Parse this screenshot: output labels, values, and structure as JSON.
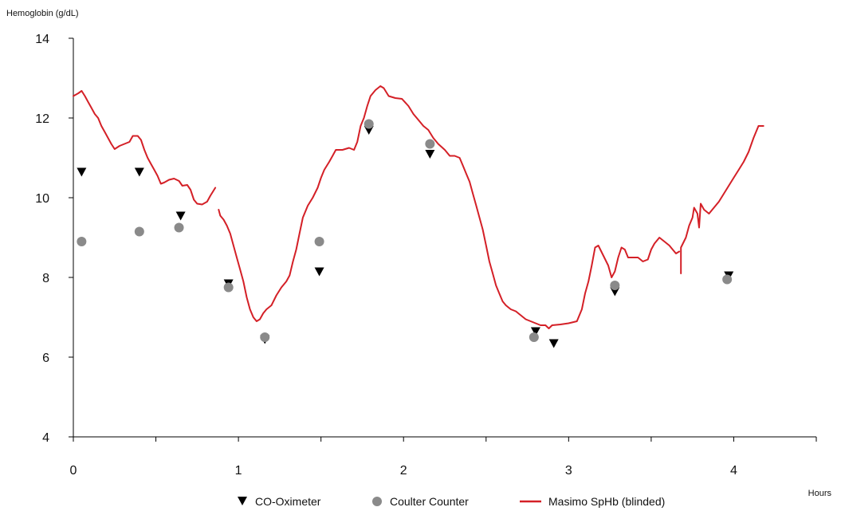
{
  "chart_data": {
    "type": "line",
    "title": "",
    "ylabel": "Hemoglobin (g/dL)",
    "xlabel": "Hours",
    "xlim": [
      0,
      4.5
    ],
    "ylim": [
      4,
      14
    ],
    "x_ticks": [
      0,
      0.5,
      1,
      1.5,
      2,
      2.5,
      3,
      3.5,
      4,
      4.5
    ],
    "x_tick_labels": [
      "0",
      "",
      "1",
      "",
      "2",
      "",
      "3",
      "",
      "4",
      ""
    ],
    "y_ticks": [
      4,
      6,
      8,
      10,
      12,
      14
    ],
    "y_tick_labels": [
      "4",
      "6",
      "8",
      "10",
      "12",
      "14"
    ],
    "grid": false,
    "legend_position": "bottom",
    "series": [
      {
        "name": "CO-Oximeter",
        "kind": "scatter",
        "marker": "triangle-down",
        "color": "#000000",
        "points": [
          [
            0.05,
            10.65
          ],
          [
            0.4,
            10.65
          ],
          [
            0.65,
            9.55
          ],
          [
            0.94,
            7.85
          ],
          [
            1.16,
            6.45
          ],
          [
            1.49,
            8.15
          ],
          [
            1.79,
            11.7
          ],
          [
            2.16,
            11.1
          ],
          [
            2.8,
            6.65
          ],
          [
            2.91,
            6.35
          ],
          [
            3.28,
            7.65
          ],
          [
            3.97,
            8.05
          ]
        ]
      },
      {
        "name": "Coulter Counter",
        "kind": "scatter",
        "marker": "circle",
        "color": "#8a8a8a",
        "points": [
          [
            0.05,
            8.9
          ],
          [
            0.4,
            9.15
          ],
          [
            0.64,
            9.25
          ],
          [
            0.94,
            7.75
          ],
          [
            1.16,
            6.5
          ],
          [
            1.49,
            8.9
          ],
          [
            1.79,
            11.85
          ],
          [
            2.16,
            11.35
          ],
          [
            2.79,
            6.5
          ],
          [
            3.28,
            7.8
          ],
          [
            3.96,
            7.95
          ]
        ]
      },
      {
        "name": "Masimo SpHb (blinded)",
        "kind": "line",
        "color": "#d42027",
        "segments": [
          [
            [
              0.0,
              12.55
            ],
            [
              0.03,
              12.62
            ],
            [
              0.05,
              12.68
            ],
            [
              0.07,
              12.55
            ],
            [
              0.09,
              12.4
            ],
            [
              0.11,
              12.25
            ],
            [
              0.13,
              12.1
            ],
            [
              0.15,
              12.0
            ],
            [
              0.17,
              11.8
            ],
            [
              0.19,
              11.65
            ],
            [
              0.21,
              11.5
            ],
            [
              0.23,
              11.35
            ],
            [
              0.25,
              11.22
            ],
            [
              0.28,
              11.3
            ],
            [
              0.31,
              11.35
            ],
            [
              0.34,
              11.4
            ],
            [
              0.36,
              11.55
            ],
            [
              0.39,
              11.55
            ],
            [
              0.41,
              11.45
            ],
            [
              0.43,
              11.2
            ],
            [
              0.45,
              11.0
            ],
            [
              0.47,
              10.85
            ],
            [
              0.49,
              10.7
            ],
            [
              0.51,
              10.55
            ],
            [
              0.53,
              10.35
            ],
            [
              0.55,
              10.38
            ],
            [
              0.58,
              10.45
            ],
            [
              0.61,
              10.48
            ],
            [
              0.64,
              10.42
            ],
            [
              0.66,
              10.3
            ],
            [
              0.69,
              10.32
            ],
            [
              0.71,
              10.2
            ],
            [
              0.73,
              9.95
            ],
            [
              0.75,
              9.85
            ],
            [
              0.78,
              9.83
            ],
            [
              0.81,
              9.9
            ],
            [
              0.83,
              10.05
            ],
            [
              0.86,
              10.25
            ]
          ],
          [
            [
              0.88,
              9.7
            ],
            [
              0.89,
              9.55
            ],
            [
              0.91,
              9.45
            ],
            [
              0.93,
              9.3
            ],
            [
              0.95,
              9.1
            ],
            [
              0.97,
              8.8
            ],
            [
              0.99,
              8.5
            ],
            [
              1.01,
              8.2
            ],
            [
              1.03,
              7.9
            ],
            [
              1.05,
              7.5
            ],
            [
              1.07,
              7.2
            ],
            [
              1.09,
              7.0
            ],
            [
              1.11,
              6.9
            ],
            [
              1.13,
              6.95
            ],
            [
              1.15,
              7.1
            ],
            [
              1.17,
              7.2
            ],
            [
              1.2,
              7.3
            ],
            [
              1.23,
              7.55
            ],
            [
              1.26,
              7.75
            ],
            [
              1.29,
              7.9
            ],
            [
              1.31,
              8.05
            ],
            [
              1.33,
              8.4
            ],
            [
              1.35,
              8.7
            ],
            [
              1.37,
              9.1
            ],
            [
              1.39,
              9.5
            ],
            [
              1.42,
              9.8
            ],
            [
              1.45,
              10.0
            ],
            [
              1.48,
              10.25
            ],
            [
              1.5,
              10.5
            ],
            [
              1.52,
              10.7
            ],
            [
              1.55,
              10.9
            ],
            [
              1.57,
              11.05
            ],
            [
              1.59,
              11.2
            ],
            [
              1.63,
              11.2
            ],
            [
              1.67,
              11.25
            ],
            [
              1.7,
              11.2
            ],
            [
              1.72,
              11.4
            ],
            [
              1.74,
              11.8
            ],
            [
              1.76,
              12.0
            ],
            [
              1.78,
              12.3
            ],
            [
              1.8,
              12.55
            ],
            [
              1.83,
              12.7
            ],
            [
              1.86,
              12.8
            ],
            [
              1.88,
              12.75
            ],
            [
              1.91,
              12.55
            ],
            [
              1.95,
              12.5
            ],
            [
              1.99,
              12.48
            ],
            [
              2.03,
              12.3
            ],
            [
              2.06,
              12.1
            ],
            [
              2.09,
              11.95
            ],
            [
              2.12,
              11.8
            ],
            [
              2.15,
              11.7
            ],
            [
              2.18,
              11.5
            ],
            [
              2.21,
              11.35
            ],
            [
              2.25,
              11.2
            ],
            [
              2.28,
              11.05
            ],
            [
              2.31,
              11.05
            ],
            [
              2.34,
              11.0
            ],
            [
              2.36,
              10.8
            ],
            [
              2.38,
              10.6
            ],
            [
              2.4,
              10.4
            ],
            [
              2.42,
              10.1
            ],
            [
              2.44,
              9.8
            ],
            [
              2.46,
              9.5
            ],
            [
              2.48,
              9.2
            ],
            [
              2.5,
              8.8
            ],
            [
              2.52,
              8.4
            ],
            [
              2.54,
              8.1
            ],
            [
              2.56,
              7.8
            ],
            [
              2.58,
              7.6
            ],
            [
              2.6,
              7.4
            ],
            [
              2.62,
              7.3
            ],
            [
              2.65,
              7.2
            ],
            [
              2.68,
              7.15
            ],
            [
              2.71,
              7.05
            ],
            [
              2.74,
              6.95
            ],
            [
              2.77,
              6.9
            ],
            [
              2.8,
              6.85
            ],
            [
              2.83,
              6.8
            ],
            [
              2.86,
              6.8
            ],
            [
              2.88,
              6.72
            ],
            [
              2.9,
              6.8
            ],
            [
              2.95,
              6.82
            ],
            [
              3.0,
              6.85
            ],
            [
              3.05,
              6.9
            ],
            [
              3.08,
              7.2
            ],
            [
              3.1,
              7.6
            ],
            [
              3.12,
              7.9
            ],
            [
              3.14,
              8.3
            ],
            [
              3.16,
              8.75
            ],
            [
              3.18,
              8.8
            ],
            [
              3.21,
              8.55
            ],
            [
              3.24,
              8.3
            ],
            [
              3.26,
              8.0
            ],
            [
              3.28,
              8.15
            ],
            [
              3.3,
              8.5
            ],
            [
              3.32,
              8.75
            ],
            [
              3.34,
              8.7
            ],
            [
              3.36,
              8.5
            ],
            [
              3.39,
              8.5
            ],
            [
              3.42,
              8.5
            ],
            [
              3.45,
              8.4
            ],
            [
              3.48,
              8.45
            ],
            [
              3.5,
              8.7
            ],
            [
              3.52,
              8.85
            ],
            [
              3.55,
              9.0
            ],
            [
              3.58,
              8.9
            ],
            [
              3.61,
              8.8
            ],
            [
              3.63,
              8.7
            ],
            [
              3.65,
              8.6
            ],
            [
              3.67,
              8.65
            ]
          ],
          [
            [
              3.68,
              8.1
            ],
            [
              3.68,
              8.75
            ],
            [
              3.71,
              9.0
            ],
            [
              3.73,
              9.3
            ],
            [
              3.75,
              9.5
            ],
            [
              3.76,
              9.75
            ],
            [
              3.78,
              9.6
            ],
            [
              3.79,
              9.25
            ],
            [
              3.8,
              9.85
            ],
            [
              3.82,
              9.7
            ],
            [
              3.85,
              9.6
            ],
            [
              3.88,
              9.75
            ],
            [
              3.91,
              9.9
            ],
            [
              3.94,
              10.1
            ],
            [
              3.97,
              10.3
            ],
            [
              4.0,
              10.5
            ],
            [
              4.03,
              10.7
            ],
            [
              4.06,
              10.9
            ],
            [
              4.09,
              11.15
            ],
            [
              4.12,
              11.5
            ],
            [
              4.15,
              11.8
            ],
            [
              4.18,
              11.8
            ]
          ]
        ]
      }
    ]
  }
}
